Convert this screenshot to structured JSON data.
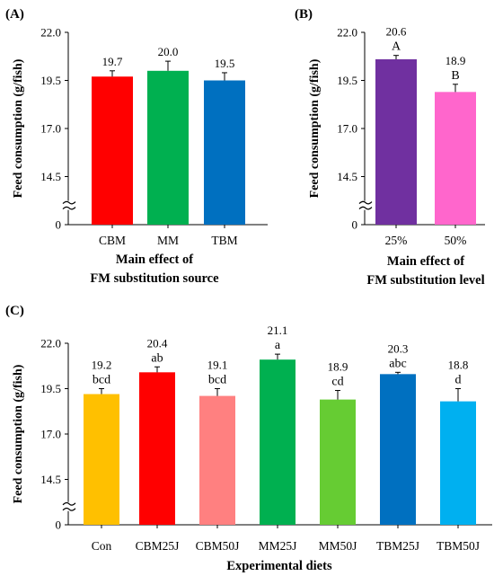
{
  "chart_data": [
    {
      "panel": "(A)",
      "type": "bar",
      "xlabel_lines": [
        "Main effect of",
        "FM substitution source"
      ],
      "ylabel": "Feed consumption (g/fish)",
      "yticks": [
        "22.0",
        "19.5",
        "17.0",
        "14.5",
        "0"
      ],
      "categories": [
        "CBM",
        "MM",
        "TBM"
      ],
      "values": [
        19.7,
        20.0,
        19.5
      ],
      "errors": [
        0.3,
        0.5,
        0.4
      ],
      "value_labels": [
        "19.7",
        "20.0",
        "19.5"
      ],
      "sig_labels": [
        "",
        "",
        ""
      ],
      "colors": [
        "#ff0000",
        "#00b050",
        "#0070c0"
      ],
      "axis_break": true,
      "grid": false
    },
    {
      "panel": "(B)",
      "type": "bar",
      "xlabel_lines": [
        "Main effect of",
        "FM substitution level"
      ],
      "ylabel": "Feed consumption (g/fish)",
      "yticks": [
        "22.0",
        "19.5",
        "17.0",
        "14.5",
        "0"
      ],
      "categories": [
        "25%",
        "50%"
      ],
      "values": [
        20.6,
        18.9
      ],
      "errors": [
        0.2,
        0.4
      ],
      "value_labels": [
        "20.6",
        "18.9"
      ],
      "sig_labels": [
        "A",
        "B"
      ],
      "colors": [
        "#7030a0",
        "#ff66cc"
      ],
      "axis_break": true,
      "grid": false
    },
    {
      "panel": "(C)",
      "type": "bar",
      "xlabel_lines": [
        "Experimental diets"
      ],
      "ylabel": "Feed consumption (g/fish)",
      "yticks": [
        "22.0",
        "19.5",
        "17.0",
        "14.5",
        "0"
      ],
      "categories": [
        "Con",
        "CBM25J",
        "CBM50J",
        "MM25J",
        "MM50J",
        "TBM25J",
        "TBM50J"
      ],
      "values": [
        19.2,
        20.4,
        19.1,
        21.1,
        18.9,
        20.3,
        18.8
      ],
      "errors": [
        0.3,
        0.3,
        0.4,
        0.3,
        0.5,
        0.1,
        0.7
      ],
      "value_labels": [
        "19.2",
        "20.4",
        "19.1",
        "21.1",
        "18.9",
        "20.3",
        "18.8"
      ],
      "sig_labels": [
        "bcd",
        "ab",
        "bcd",
        "a",
        "cd",
        "abc",
        "d"
      ],
      "colors": [
        "#ffc000",
        "#ff0000",
        "#ff8080",
        "#00b050",
        "#66cc33",
        "#0070c0",
        "#00b0f0"
      ],
      "axis_break": true,
      "grid": false
    }
  ]
}
